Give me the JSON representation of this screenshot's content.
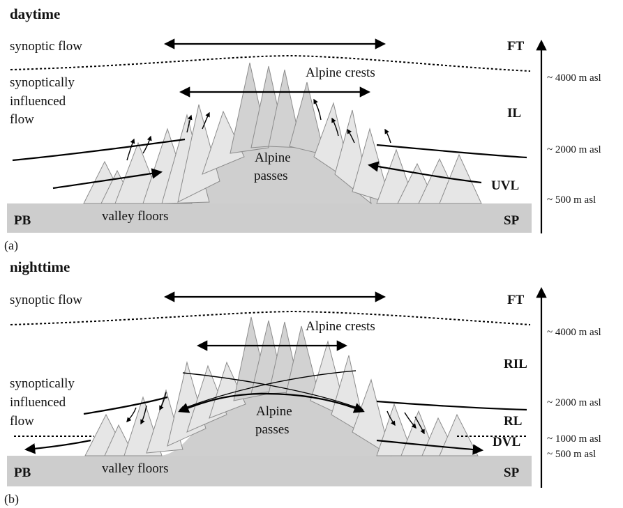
{
  "panels": [
    {
      "title": "daytime",
      "panel_label": "(a)",
      "synoptic_flow": "synoptic flow",
      "synoptically_influenced_flow": [
        "synoptically",
        "influenced",
        "flow"
      ],
      "alpine_crests": "Alpine crests",
      "alpine_passes": [
        "Alpine",
        "passes"
      ],
      "valley_floors": "valley floors",
      "left_region": "PB",
      "right_region": "SP",
      "layers": [
        "FT",
        "IL",
        "UVL"
      ],
      "altitudes": [
        "~ 4000 m asl",
        "~ 2000 m asl",
        "~ 500 m asl"
      ]
    },
    {
      "title": "nighttime",
      "panel_label": "(b)",
      "synoptic_flow": "synoptic flow",
      "synoptically_influenced_flow": [
        "synoptically",
        "influenced",
        "flow"
      ],
      "alpine_crests": "Alpine crests",
      "alpine_passes": [
        "Alpine",
        "passes"
      ],
      "valley_floors": "valley floors",
      "left_region": "PB",
      "right_region": "SP",
      "layers": [
        "FT",
        "RIL",
        "RL",
        "DVL"
      ],
      "altitudes": [
        "~ 4000 m asl",
        "~ 2000 m asl",
        "~ 1000 m asl",
        "~ 500 m asl"
      ]
    }
  ]
}
